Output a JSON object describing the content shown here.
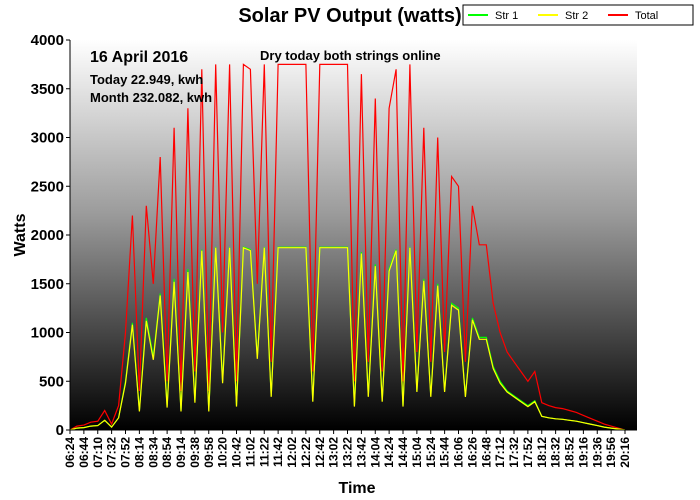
{
  "chart_data": {
    "type": "line",
    "title": "Solar PV Output (watts)",
    "xlabel": "Time",
    "ylabel": "Watts",
    "ylim": [
      0,
      4000
    ],
    "yticks": [
      0,
      500,
      1000,
      1500,
      2000,
      2500,
      3000,
      3500,
      4000
    ],
    "x_tick_labels": [
      "06:24",
      "06:44",
      "07:10",
      "07:32",
      "07:52",
      "08:14",
      "08:34",
      "08:54",
      "09:14",
      "09:38",
      "09:58",
      "10:20",
      "10:42",
      "11:02",
      "11:22",
      "11:42",
      "12:02",
      "12:22",
      "12:42",
      "13:02",
      "13:22",
      "13:42",
      "14:04",
      "14:24",
      "14:44",
      "15:04",
      "15:24",
      "15:44",
      "16:06",
      "16:26",
      "16:48",
      "17:12",
      "17:32",
      "17:52",
      "18:12",
      "18:32",
      "18:52",
      "19:16",
      "19:36",
      "19:56",
      "20:16"
    ],
    "legend_position": "top-right",
    "background": "vertical gradient white to black",
    "annotations": {
      "date": "16 April 2016",
      "note": "Dry today both strings online",
      "today": "Today 22.949, kwh",
      "month": "Month 232.082, kwh"
    },
    "series": [
      {
        "name": "Str 1",
        "color": "#00ff00",
        "values": [
          0,
          20,
          25,
          40,
          45,
          100,
          30,
          125,
          500,
          1100,
          200,
          1150,
          750,
          1400,
          250,
          1550,
          200,
          1650,
          300,
          1850,
          200,
          1875,
          500,
          1875,
          250,
          1875,
          1850,
          750,
          1875,
          350,
          1875,
          1875,
          1875,
          1875,
          1875,
          300,
          1875,
          1875,
          1875,
          1875,
          1875,
          250,
          1825,
          350,
          1700,
          300,
          1650,
          1850,
          250,
          1875,
          400,
          1550,
          350,
          1500,
          400,
          1300,
          1250,
          350,
          1150,
          950,
          950,
          650,
          500,
          400,
          350,
          300,
          250,
          300,
          140,
          125,
          115,
          110,
          100,
          90,
          75,
          60,
          45,
          30,
          20,
          10,
          0
        ]
      },
      {
        "name": "Str 2",
        "color": "#ffff00",
        "values": [
          0,
          20,
          25,
          40,
          45,
          100,
          30,
          125,
          480,
          1080,
          190,
          1120,
          720,
          1380,
          230,
          1520,
          190,
          1620,
          280,
          1840,
          190,
          1870,
          480,
          1870,
          240,
          1870,
          1840,
          730,
          1870,
          340,
          1870,
          1870,
          1870,
          1870,
          1870,
          290,
          1870,
          1870,
          1870,
          1870,
          1870,
          240,
          1810,
          340,
          1680,
          290,
          1630,
          1840,
          240,
          1870,
          390,
          1530,
          340,
          1480,
          390,
          1280,
          1230,
          340,
          1130,
          930,
          930,
          630,
          480,
          390,
          340,
          290,
          240,
          290,
          140,
          125,
          115,
          110,
          100,
          90,
          75,
          60,
          45,
          30,
          20,
          10,
          0
        ]
      },
      {
        "name": "Total",
        "color": "#ff0000",
        "values": [
          0,
          40,
          50,
          80,
          90,
          200,
          60,
          250,
          1000,
          2200,
          400,
          2300,
          1500,
          2800,
          500,
          3100,
          400,
          3300,
          600,
          3700,
          400,
          3750,
          1000,
          3750,
          500,
          3750,
          3700,
          1500,
          3750,
          700,
          3750,
          3750,
          3750,
          3750,
          3750,
          600,
          3750,
          3750,
          3750,
          3750,
          3750,
          500,
          3650,
          700,
          3400,
          600,
          3300,
          3700,
          500,
          3750,
          800,
          3100,
          700,
          3000,
          800,
          2600,
          2500,
          700,
          2300,
          1900,
          1900,
          1300,
          1000,
          800,
          700,
          600,
          500,
          600,
          280,
          250,
          230,
          220,
          200,
          180,
          150,
          120,
          90,
          60,
          40,
          20,
          0
        ]
      }
    ]
  }
}
